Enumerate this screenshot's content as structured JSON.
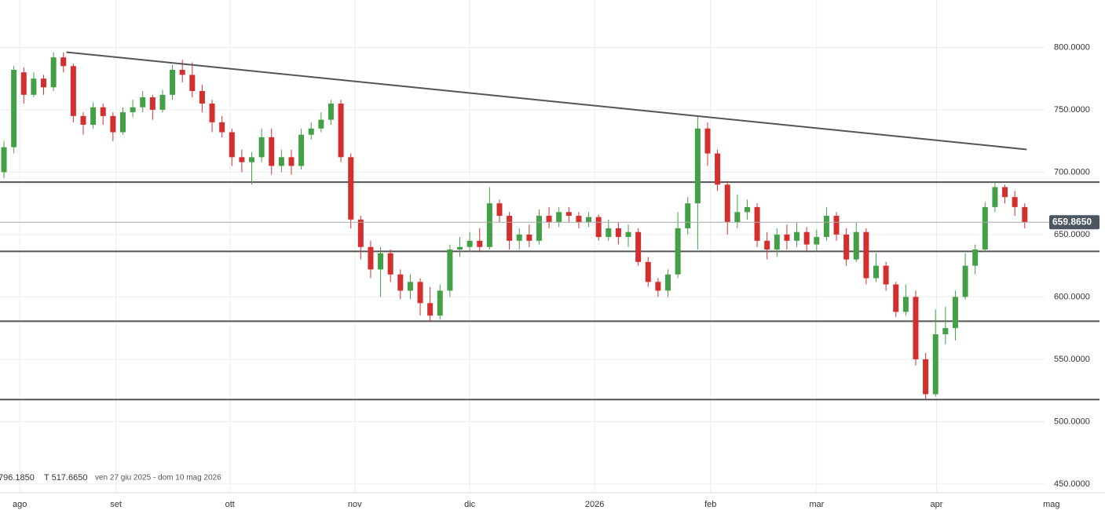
{
  "chart_data": {
    "type": "candlestick",
    "open": [
      700,
      720,
      780,
      762,
      775,
      768,
      792,
      785,
      745,
      738,
      752,
      745,
      732,
      748,
      752,
      760,
      750,
      762,
      782,
      778,
      765,
      755,
      740,
      732,
      712,
      708,
      712,
      728,
      705,
      712,
      705,
      730,
      735,
      742,
      755,
      712,
      662,
      640,
      622,
      635,
      618,
      605,
      612,
      595,
      585,
      605,
      638,
      640,
      645,
      640,
      675,
      665,
      645,
      650,
      645,
      665,
      660,
      668,
      665,
      660,
      664,
      648,
      655,
      648,
      652,
      628,
      612,
      605,
      618,
      655,
      675,
      735,
      715,
      690,
      660,
      668,
      672,
      645,
      638,
      650,
      645,
      652,
      642,
      648,
      665,
      650,
      630,
      652,
      615,
      625,
      610,
      588,
      600,
      550,
      522,
      570,
      575,
      600,
      625,
      638,
      672,
      688,
      680,
      672
    ],
    "high": [
      725,
      785,
      784,
      780,
      778,
      796,
      796,
      787,
      748,
      756,
      755,
      748,
      752,
      758,
      765,
      762,
      766,
      786,
      790,
      788,
      770,
      758,
      745,
      735,
      718,
      716,
      735,
      735,
      718,
      718,
      735,
      740,
      748,
      758,
      758,
      715,
      665,
      645,
      640,
      638,
      622,
      618,
      615,
      608,
      610,
      642,
      648,
      652,
      655,
      688,
      678,
      668,
      655,
      658,
      670,
      672,
      672,
      672,
      668,
      668,
      666,
      662,
      660,
      658,
      655,
      632,
      615,
      622,
      668,
      680,
      745,
      740,
      718,
      693,
      682,
      678,
      675,
      652,
      655,
      658,
      660,
      656,
      654,
      672,
      668,
      655,
      660,
      655,
      635,
      628,
      612,
      610,
      605,
      555,
      590,
      592,
      605,
      635,
      642,
      676,
      692,
      690,
      685,
      675
    ],
    "low": [
      695,
      715,
      755,
      760,
      762,
      765,
      780,
      740,
      730,
      735,
      738,
      725,
      730,
      744,
      748,
      742,
      748,
      758,
      772,
      760,
      748,
      732,
      728,
      705,
      700,
      690,
      708,
      698,
      700,
      698,
      702,
      726,
      732,
      738,
      708,
      655,
      630,
      615,
      600,
      612,
      598,
      598,
      585,
      580,
      582,
      600,
      632,
      636,
      636,
      638,
      660,
      638,
      638,
      640,
      642,
      655,
      656,
      660,
      655,
      656,
      645,
      645,
      642,
      640,
      625,
      608,
      600,
      600,
      615,
      650,
      638,
      705,
      685,
      650,
      655,
      662,
      640,
      630,
      632,
      638,
      640,
      636,
      636,
      645,
      645,
      625,
      628,
      610,
      612,
      605,
      584,
      585,
      545,
      518,
      520,
      562,
      565,
      598,
      618,
      636,
      668,
      675,
      665,
      655
    ],
    "close": [
      720,
      782,
      762,
      775,
      768,
      792,
      785,
      745,
      738,
      752,
      745,
      732,
      748,
      752,
      760,
      750,
      762,
      782,
      778,
      765,
      755,
      740,
      732,
      712,
      708,
      712,
      728,
      705,
      712,
      705,
      730,
      735,
      742,
      755,
      712,
      662,
      640,
      622,
      635,
      618,
      605,
      612,
      595,
      585,
      605,
      638,
      640,
      645,
      640,
      675,
      665,
      645,
      650,
      645,
      665,
      660,
      668,
      665,
      660,
      664,
      648,
      655,
      648,
      652,
      628,
      612,
      605,
      618,
      655,
      675,
      735,
      715,
      690,
      660,
      668,
      672,
      645,
      638,
      650,
      645,
      652,
      642,
      648,
      665,
      650,
      630,
      652,
      615,
      625,
      610,
      588,
      600,
      550,
      522,
      570,
      575,
      600,
      625,
      638,
      672,
      688,
      680,
      672,
      660
    ],
    "up_color": "#43a047",
    "down_color": "#d32f2f",
    "xlim": [
      -0.4,
      111.1
    ],
    "xticks": [
      {
        "value": 1.6,
        "label": "ago"
      },
      {
        "value": 11.3,
        "label": "set"
      },
      {
        "value": 22.8,
        "label": "ott"
      },
      {
        "value": 35.4,
        "label": "nov"
      },
      {
        "value": 47.0,
        "label": "dic"
      },
      {
        "value": 59.6,
        "label": "2026"
      },
      {
        "value": 71.3,
        "label": "feb"
      },
      {
        "value": 82.0,
        "label": "mar"
      },
      {
        "value": 94.1,
        "label": "apr"
      },
      {
        "value": 105.7,
        "label": "mag"
      }
    ],
    "ylim": [
      443,
      838
    ],
    "yticks": [
      {
        "value": 450,
        "label": "450.0000"
      },
      {
        "value": 500,
        "label": "500.0000"
      },
      {
        "value": 550,
        "label": "550.0000"
      },
      {
        "value": 600,
        "label": "600.0000"
      },
      {
        "value": 650,
        "label": "650.0000"
      },
      {
        "value": 700,
        "label": "700.0000"
      },
      {
        "value": 750,
        "label": "750.0000"
      },
      {
        "value": 800,
        "label": "800.0000"
      }
    ],
    "grid": true,
    "hlines": [
      692,
      636.5,
      580.5,
      517.7
    ],
    "trendline": {
      "x": [
        6.3,
        103.2
      ],
      "y": [
        796.2,
        718.2
      ]
    },
    "last": {
      "value": 659.865,
      "label": "659.8650"
    },
    "info": [
      "796.1850",
      "T 517.6650",
      "ven 27 giu 2025 - dom 10 mag 2026"
    ]
  }
}
